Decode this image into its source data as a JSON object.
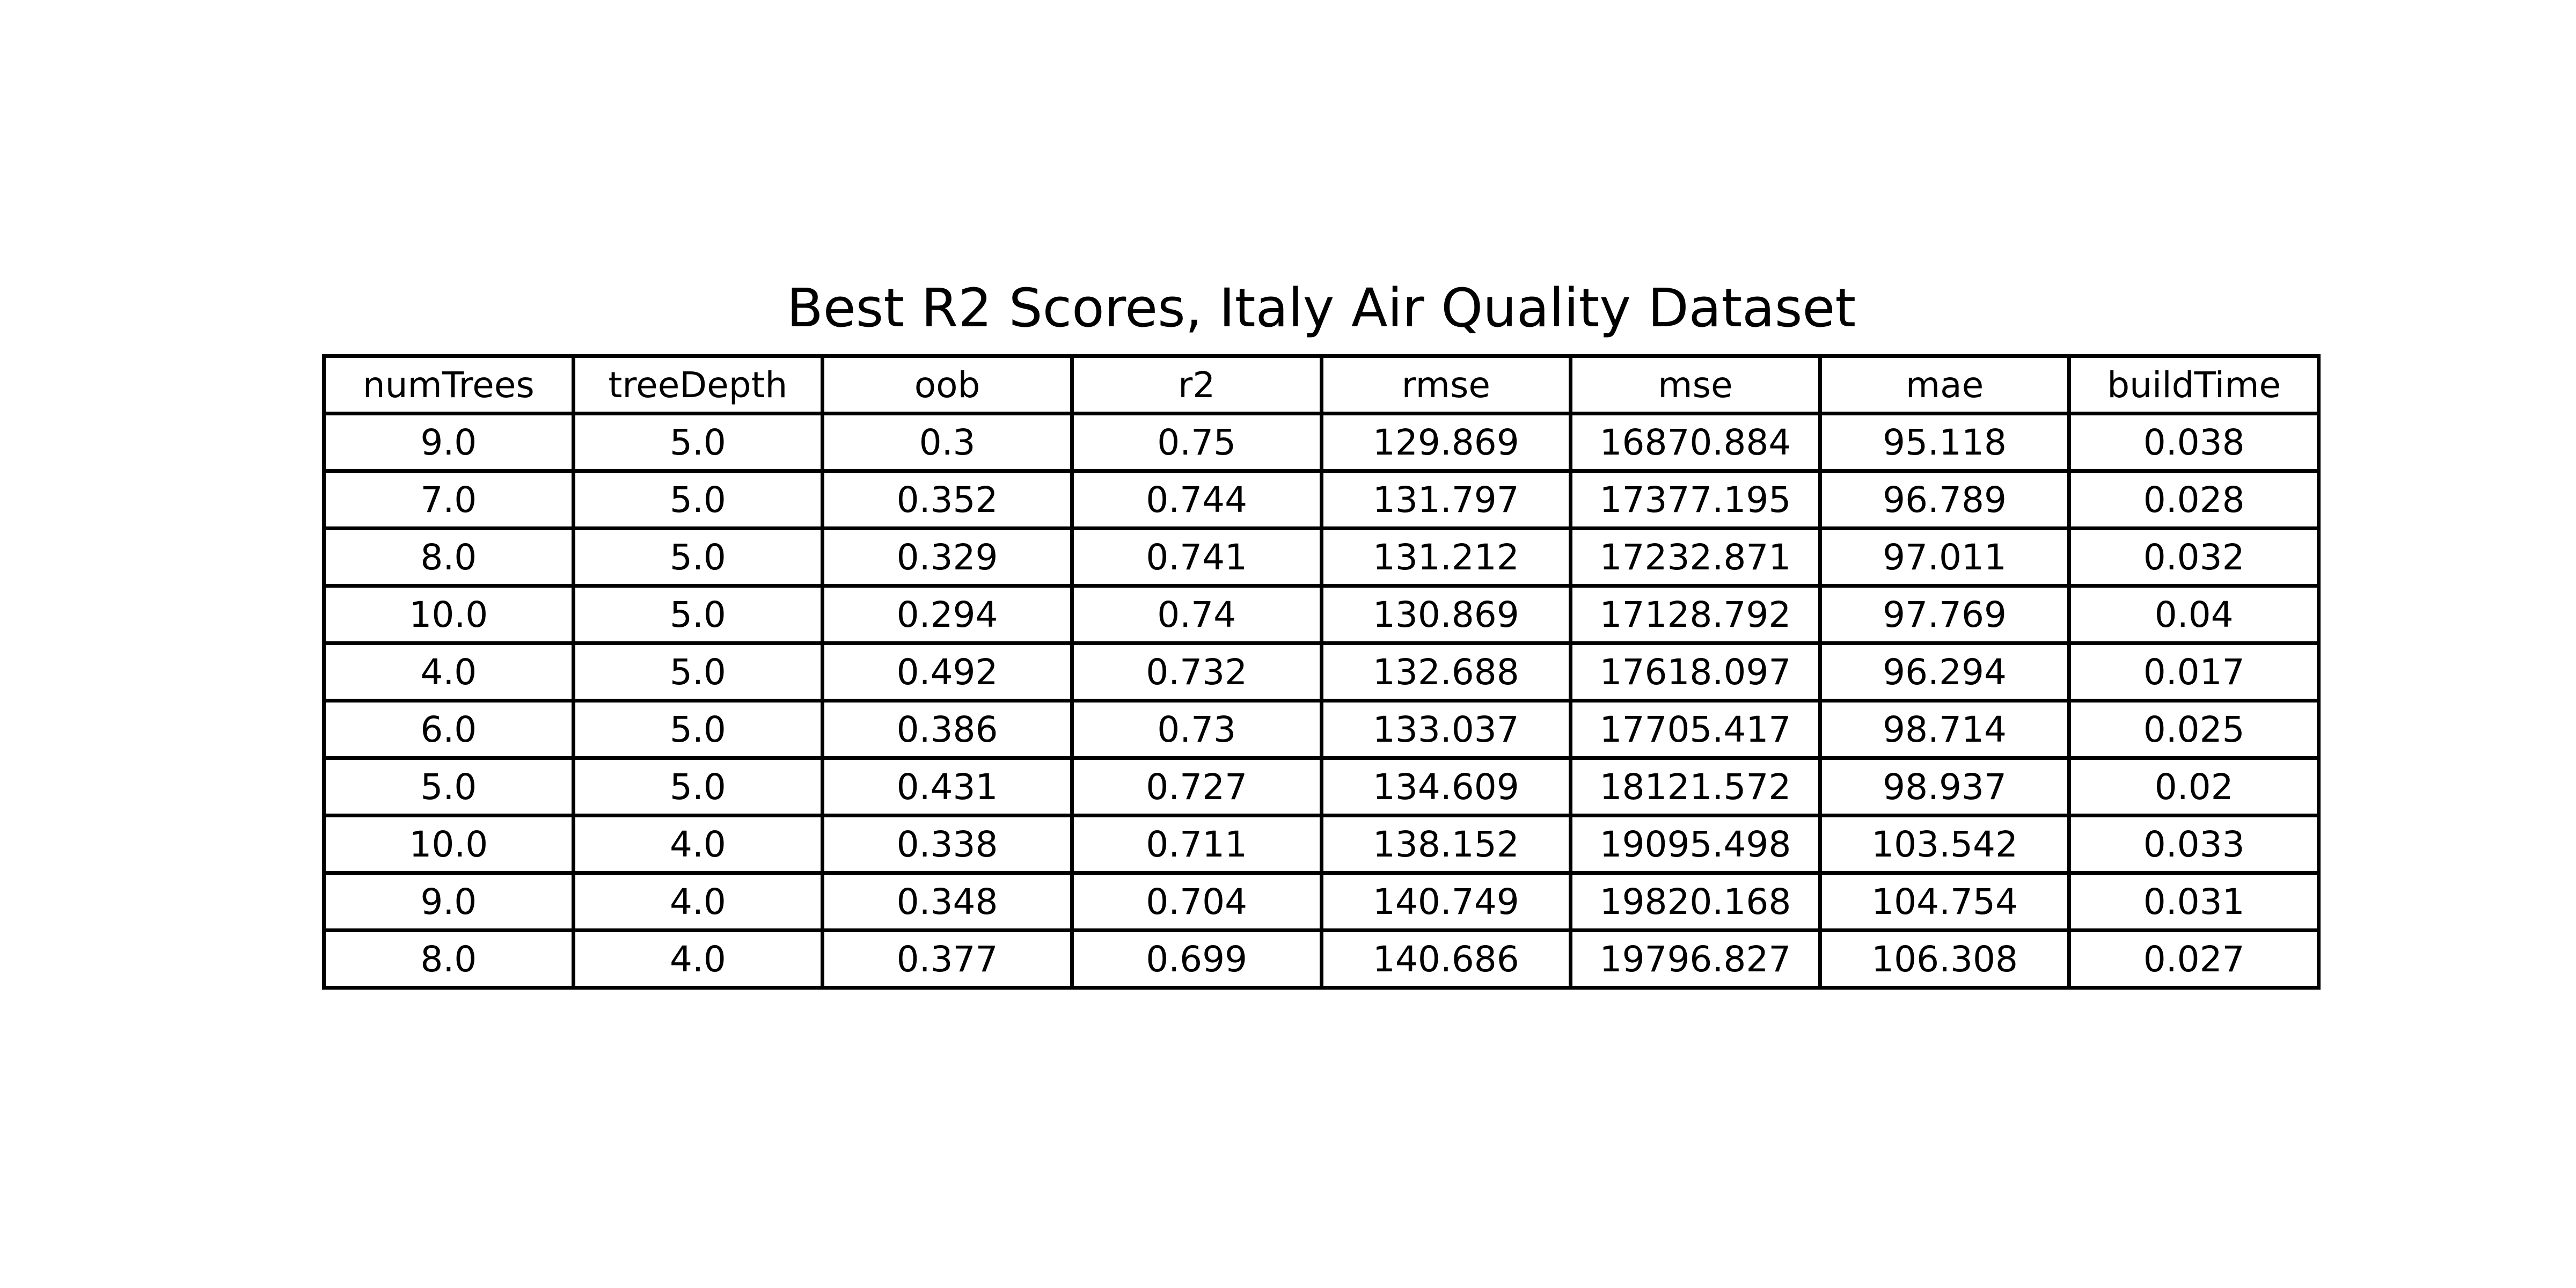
{
  "chart_data": {
    "type": "table",
    "title": "Best R2 Scores, Italy Air Quality Dataset",
    "columns": [
      "numTrees",
      "treeDepth",
      "oob",
      "r2",
      "rmse",
      "mse",
      "mae",
      "buildTime"
    ],
    "rows": [
      [
        "9.0",
        "5.0",
        "0.3",
        "0.75",
        "129.869",
        "16870.884",
        "95.118",
        "0.038"
      ],
      [
        "7.0",
        "5.0",
        "0.352",
        "0.744",
        "131.797",
        "17377.195",
        "96.789",
        "0.028"
      ],
      [
        "8.0",
        "5.0",
        "0.329",
        "0.741",
        "131.212",
        "17232.871",
        "97.011",
        "0.032"
      ],
      [
        "10.0",
        "5.0",
        "0.294",
        "0.74",
        "130.869",
        "17128.792",
        "97.769",
        "0.04"
      ],
      [
        "4.0",
        "5.0",
        "0.492",
        "0.732",
        "132.688",
        "17618.097",
        "96.294",
        "0.017"
      ],
      [
        "6.0",
        "5.0",
        "0.386",
        "0.73",
        "133.037",
        "17705.417",
        "98.714",
        "0.025"
      ],
      [
        "5.0",
        "5.0",
        "0.431",
        "0.727",
        "134.609",
        "18121.572",
        "98.937",
        "0.02"
      ],
      [
        "10.0",
        "4.0",
        "0.338",
        "0.711",
        "138.152",
        "19095.498",
        "103.542",
        "0.033"
      ],
      [
        "9.0",
        "4.0",
        "0.348",
        "0.704",
        "140.749",
        "19820.168",
        "104.754",
        "0.031"
      ],
      [
        "8.0",
        "4.0",
        "0.377",
        "0.699",
        "140.686",
        "19796.827",
        "106.308",
        "0.027"
      ]
    ]
  }
}
